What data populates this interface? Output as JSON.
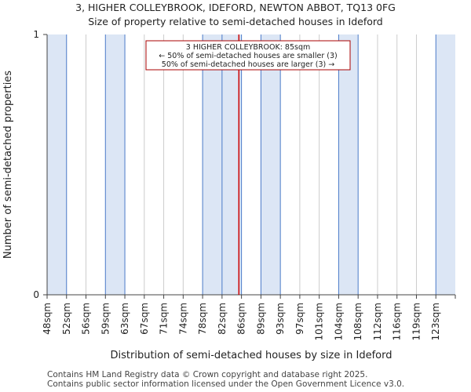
{
  "header": {
    "title_line1": "3, HIGHER COLLEYBROOK, IDEFORD, NEWTON ABBOT, TQ13 0FG",
    "title_line2": "Size of property relative to semi-detached houses in Ideford"
  },
  "footer": {
    "line1": "Contains HM Land Registry data © Crown copyright and database right 2025.",
    "line2": "Contains public sector information licensed under the Open Government Licence v3.0."
  },
  "chart_data": {
    "type": "bar",
    "title": "Size of property relative to semi-detached houses in Ideford",
    "xlabel": "Distribution of semi-detached houses by size in Ideford",
    "ylabel": "Number of semi-detached properties",
    "categories": [
      "48sqm",
      "52sqm",
      "56sqm",
      "59sqm",
      "63sqm",
      "67sqm",
      "71sqm",
      "74sqm",
      "78sqm",
      "82sqm",
      "86sqm",
      "89sqm",
      "93sqm",
      "97sqm",
      "101sqm",
      "104sqm",
      "108sqm",
      "112sqm",
      "116sqm",
      "119sqm",
      "123sqm"
    ],
    "values": [
      1,
      0,
      0,
      1,
      0,
      0,
      0,
      0,
      1,
      1,
      0,
      1,
      0,
      0,
      0,
      1,
      0,
      0,
      0,
      0,
      1
    ],
    "yticks": [
      "0",
      "1"
    ],
    "ylim": [
      0,
      1
    ],
    "highlight": {
      "value_sqm": 85,
      "annotation_line1": "3 HIGHER COLLEYBROOK: 85sqm",
      "annotation_line2": "← 50% of semi-detached houses are smaller (3)",
      "annotation_line3": "50% of semi-detached houses are larger (3) →"
    },
    "colors": {
      "bar_fill": "#dce6f5",
      "bar_edge": "#4a7ac8",
      "highlight_line": "#cc0000",
      "annotation_border": "#aa0000",
      "gridline": "#cccccc"
    }
  }
}
